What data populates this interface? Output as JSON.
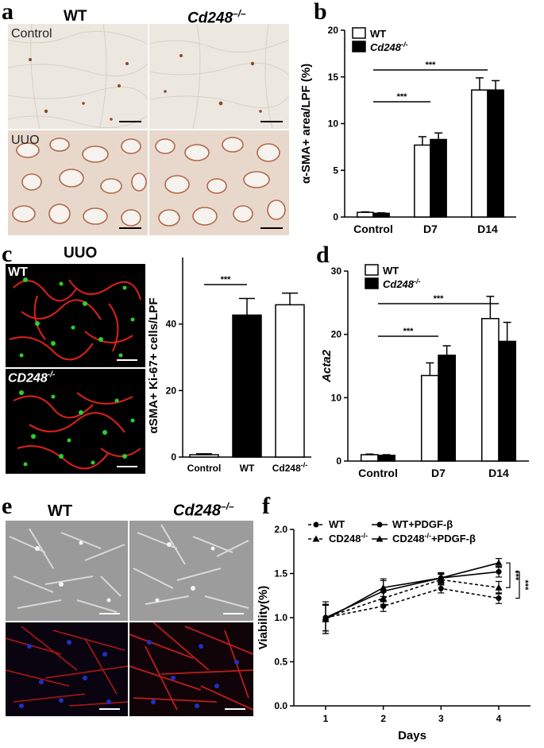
{
  "panels": {
    "a": {
      "letter": "a",
      "col_wt": "WT",
      "col_ko": "Cd248",
      "col_ko_sup": "–/–",
      "row_top": "Control",
      "row_bottom": "UUO"
    },
    "b": {
      "letter": "b"
    },
    "c": {
      "letter": "c",
      "title": "UUO",
      "row_wt": "WT",
      "row_ko": "CD248",
      "row_ko_sup": "-/-"
    },
    "d": {
      "letter": "d"
    },
    "e": {
      "letter": "e",
      "col_wt": "WT",
      "col_ko": "Cd248",
      "col_ko_sup": "–/–"
    },
    "f": {
      "letter": "f"
    }
  },
  "colors": {
    "bar_wt": "#ffffff",
    "bar_ko": "#000000",
    "ihc_bg": "#ece8e0",
    "ihc_stain": "#9a5a3a",
    "if_bg": "#000000",
    "if_red": "#e0201c",
    "if_green": "#2cd02c",
    "if_blue": "#2030c0",
    "phase_bg": "#9a9a9a"
  },
  "chart_data": [
    {
      "id": "b",
      "type": "bar",
      "categories": [
        "Control",
        "D7",
        "D14"
      ],
      "series": [
        {
          "name": "WT",
          "values": [
            0.5,
            7.7,
            13.6
          ],
          "errors": [
            0.05,
            0.9,
            1.3
          ]
        },
        {
          "name": "Cd248-/-",
          "values": [
            0.4,
            8.3,
            13.6
          ],
          "errors": [
            0.05,
            0.7,
            1.0
          ]
        }
      ],
      "ylabel": "α-SMA+ area/LPF (%)",
      "ylim": [
        0,
        20
      ],
      "yticks": [
        "0",
        "5",
        "10",
        "15",
        "20"
      ],
      "legend": [
        "WT",
        "Cd248-/-"
      ],
      "legend_position": "top-left",
      "annotations": [
        "***",
        "***"
      ]
    },
    {
      "id": "c",
      "type": "bar",
      "categories": [
        "Control",
        "WT",
        "Cd248-/-"
      ],
      "values": [
        0.7,
        42.7,
        45.8
      ],
      "errors": [
        0.3,
        5.0,
        3.5
      ],
      "bar_colors": [
        "#ffffff",
        "#000000",
        "#ffffff"
      ],
      "ylabel": "αSMA+ Ki-67+ cells/LPF",
      "ylim": [
        0,
        60
      ],
      "yticks": [
        "0",
        "20",
        "40"
      ],
      "annotations": [
        "***"
      ]
    },
    {
      "id": "d",
      "type": "bar",
      "categories": [
        "Control",
        "D7",
        "D14"
      ],
      "series": [
        {
          "name": "WT",
          "values": [
            1.0,
            13.5,
            22.5
          ],
          "errors": [
            0.1,
            2.0,
            3.5
          ]
        },
        {
          "name": "Cd248-/-",
          "values": [
            0.9,
            16.7,
            18.9
          ],
          "errors": [
            0.1,
            1.5,
            3.0
          ]
        }
      ],
      "ylabel": "Acta2",
      "ylim": [
        0,
        30
      ],
      "yticks": [
        "0",
        "10",
        "20",
        "30"
      ],
      "legend": [
        "WT",
        "Cd248-/-"
      ],
      "legend_position": "top-left",
      "annotations": [
        "***",
        "***"
      ]
    },
    {
      "id": "f",
      "type": "line",
      "x": [
        1,
        2,
        3,
        4
      ],
      "series": [
        {
          "name": "WT",
          "values": [
            1.0,
            1.13,
            1.33,
            1.22
          ],
          "errors": [
            0.18,
            0.06,
            0.05,
            0.06
          ],
          "dashed": true,
          "marker": "circle"
        },
        {
          "name": "CD248-/-",
          "values": [
            1.0,
            1.22,
            1.43,
            1.34
          ],
          "errors": [
            0.15,
            0.07,
            0.06,
            0.07
          ],
          "dashed": true,
          "marker": "triangle"
        },
        {
          "name": "WT+PDGF-β",
          "values": [
            1.0,
            1.3,
            1.45,
            1.52
          ],
          "errors": [
            0.15,
            0.12,
            0.06,
            0.06
          ],
          "dashed": false,
          "marker": "circle"
        },
        {
          "name": "CD248-/-+PDGF-β",
          "values": [
            0.98,
            1.34,
            1.45,
            1.62
          ],
          "errors": [
            0.16,
            0.1,
            0.05,
            0.05
          ],
          "dashed": false,
          "marker": "triangle"
        }
      ],
      "xlabel": "Days",
      "ylabel": "Viability(%)",
      "ylim": [
        0.0,
        2.0
      ],
      "yticks": [
        "0.0",
        "0.5",
        "1.0",
        "1.5",
        "2.0"
      ],
      "xticks": [
        "1",
        "2",
        "3",
        "4"
      ],
      "legend_position": "top",
      "annotations": [
        "***",
        "***"
      ]
    }
  ]
}
